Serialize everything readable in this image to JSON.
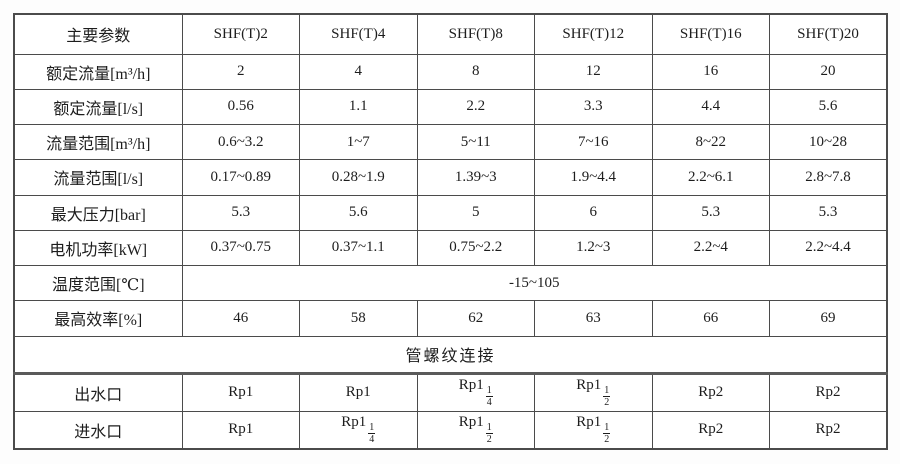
{
  "style": {
    "border_color": "#4b4b4b",
    "thick_divider_color": "#5a5a5a",
    "text_color": "#1d1d1d",
    "background": "#ffffff"
  },
  "table": {
    "header": {
      "param_label": "主要参数",
      "models": [
        "SHF(T)2",
        "SHF(T)4",
        "SHF(T)8",
        "SHF(T)12",
        "SHF(T)16",
        "SHF(T)20"
      ]
    },
    "rows": [
      {
        "label": "额定流量[m³/h]",
        "values": [
          "2",
          "4",
          "8",
          "12",
          "16",
          "20"
        ]
      },
      {
        "label": "额定流量[l/s]",
        "values": [
          "0.56",
          "1.1",
          "2.2",
          "3.3",
          "4.4",
          "5.6"
        ]
      },
      {
        "label": "流量范围[m³/h]",
        "values": [
          "0.6~3.2",
          "1~7",
          "5~11",
          "7~16",
          "8~22",
          "10~28"
        ]
      },
      {
        "label": "流量范围[l/s]",
        "values": [
          "0.17~0.89",
          "0.28~1.9",
          "1.39~3",
          "1.9~4.4",
          "2.2~6.1",
          "2.8~7.8"
        ]
      },
      {
        "label": "最大压力[bar]",
        "values": [
          "5.3",
          "5.6",
          "5",
          "6",
          "5.3",
          "5.3"
        ]
      },
      {
        "label": "电机功率[kW]",
        "values": [
          "0.37~0.75",
          "0.37~1.1",
          "0.75~2.2",
          "1.2~3",
          "2.2~4",
          "2.2~4.4"
        ]
      }
    ],
    "temperature_row": {
      "label": "温度范围[℃]",
      "value": "-15~105"
    },
    "efficiency_row": {
      "label": "最高效率[%]",
      "values": [
        "46",
        "58",
        "62",
        "63",
        "66",
        "69"
      ]
    },
    "connection_section": {
      "title": "管螺纹连接"
    },
    "connection_rows": [
      {
        "label": "出水口",
        "values": [
          {
            "base": "Rp1"
          },
          {
            "base": "Rp1"
          },
          {
            "base": "Rp1",
            "num": "1",
            "den": "4"
          },
          {
            "base": "Rp1",
            "num": "1",
            "den": "2"
          },
          {
            "base": "Rp2"
          },
          {
            "base": "Rp2"
          }
        ]
      },
      {
        "label": "进水口",
        "values": [
          {
            "base": "Rp1"
          },
          {
            "base": "Rp1",
            "num": "1",
            "den": "4"
          },
          {
            "base": "Rp1",
            "num": "1",
            "den": "2"
          },
          {
            "base": "Rp1",
            "num": "1",
            "den": "2"
          },
          {
            "base": "Rp2"
          },
          {
            "base": "Rp2"
          }
        ]
      }
    ]
  }
}
